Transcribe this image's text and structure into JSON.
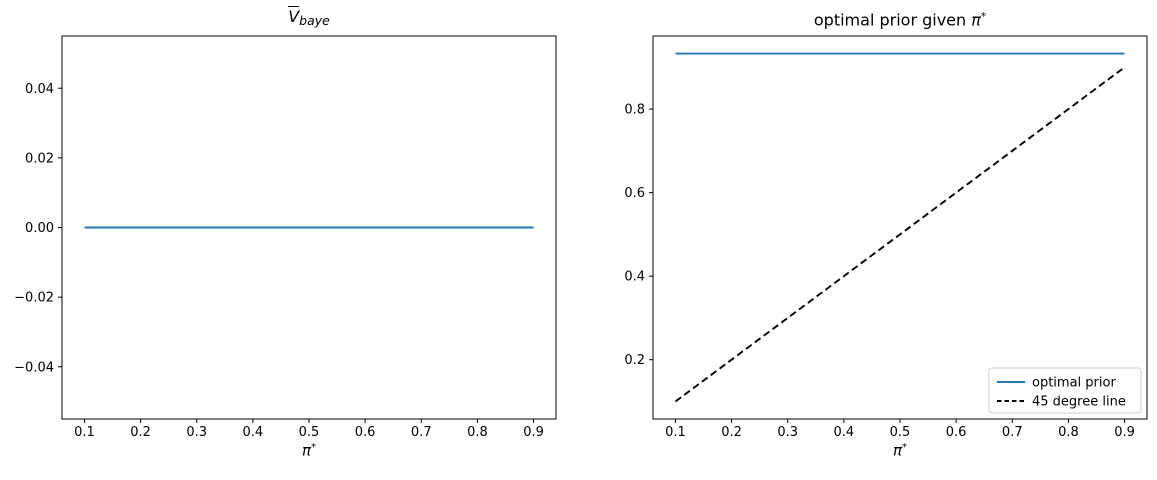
{
  "figure": {
    "background": "#ffffff"
  },
  "colors": {
    "optimal_prior_blue": "#1f77b4",
    "dashed_black": "#000000",
    "axis": "#000000",
    "tick_text": "#000000",
    "legend_border": "#cccccc",
    "legend_background": "#ffffff"
  },
  "chart_data": [
    {
      "type": "line",
      "title": "V̄_baye",
      "title_parts": [
        {
          "text": "V",
          "style": "overline-italic"
        },
        {
          "text": "baye",
          "style": "sub-italic"
        }
      ],
      "xlabel": "π*",
      "xlabel_parts": [
        {
          "text": "π",
          "style": "italic"
        },
        {
          "text": "*",
          "style": "sup"
        }
      ],
      "ylabel": "",
      "xlim": [
        0.06,
        0.94
      ],
      "ylim": [
        -0.055,
        0.055
      ],
      "xticks": [
        0.1,
        0.2,
        0.3,
        0.4,
        0.5,
        0.6,
        0.7,
        0.8,
        0.9
      ],
      "xtick_labels": [
        "0.1",
        "0.2",
        "0.3",
        "0.4",
        "0.5",
        "0.6",
        "0.7",
        "0.8",
        "0.9"
      ],
      "yticks": [
        -0.04,
        -0.02,
        0.0,
        0.02,
        0.04
      ],
      "ytick_labels": [
        "−0.04",
        "−0.02",
        "0.00",
        "0.02",
        "0.04"
      ],
      "grid": false,
      "legend": null,
      "series": [
        {
          "name": "Vbar_baye",
          "color": "#1f77b4",
          "style": "solid",
          "x": [
            0.1,
            0.9
          ],
          "y": [
            0.0,
            0.0
          ]
        }
      ]
    },
    {
      "type": "line",
      "title": "optimal prior given π*",
      "title_parts": [
        {
          "text": "optimal prior given ",
          "style": "normal"
        },
        {
          "text": "π",
          "style": "italic"
        },
        {
          "text": "*",
          "style": "sup"
        }
      ],
      "xlabel": "π*",
      "xlabel_parts": [
        {
          "text": "π",
          "style": "italic"
        },
        {
          "text": "*",
          "style": "sup"
        }
      ],
      "ylabel": "",
      "xlim": [
        0.06,
        0.94
      ],
      "ylim": [
        0.058,
        0.975
      ],
      "xticks": [
        0.1,
        0.2,
        0.3,
        0.4,
        0.5,
        0.6,
        0.7,
        0.8,
        0.9
      ],
      "xtick_labels": [
        "0.1",
        "0.2",
        "0.3",
        "0.4",
        "0.5",
        "0.6",
        "0.7",
        "0.8",
        "0.9"
      ],
      "yticks": [
        0.2,
        0.4,
        0.6,
        0.8
      ],
      "ytick_labels": [
        "0.2",
        "0.4",
        "0.6",
        "0.8"
      ],
      "grid": false,
      "legend": {
        "position": "lower right",
        "entries": [
          "optimal prior",
          "45 degree line"
        ]
      },
      "series": [
        {
          "name": "optimal prior",
          "color": "#1f77b4",
          "style": "solid",
          "x": [
            0.1,
            0.9
          ],
          "y": [
            0.933,
            0.933
          ]
        },
        {
          "name": "45 degree line",
          "color": "#000000",
          "style": "dashed",
          "x": [
            0.1,
            0.9
          ],
          "y": [
            0.1,
            0.9
          ]
        }
      ]
    }
  ]
}
